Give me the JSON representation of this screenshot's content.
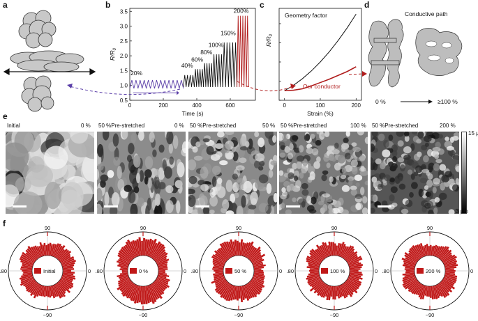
{
  "panels": {
    "a": "a",
    "b": "b",
    "c": "c",
    "d": "d",
    "e": "e",
    "f": "f"
  },
  "chart_data": [
    {
      "type": "line",
      "panel": "b",
      "ylabel": "R/R0",
      "xlabel": "Time (s)",
      "xlim": [
        0,
        750
      ],
      "ylim": [
        0.5,
        3.6
      ],
      "xticks": [
        0,
        200,
        400,
        600
      ],
      "yticks": [
        0.5,
        1.0,
        1.5,
        2.0,
        2.5,
        3.0,
        3.5
      ],
      "ytick_labels": [
        "0.5",
        "1.0",
        "1.5",
        "2.0",
        "2.5",
        "3.0",
        "3.5"
      ],
      "series": [
        {
          "name": "20%",
          "color": "#5b3fa8",
          "t_start": 0,
          "t_end": 320,
          "cycles": 13,
          "min": 0.9,
          "max": 1.18
        },
        {
          "name": "40%",
          "color": "#111111",
          "t_start": 320,
          "t_end": 385,
          "cycles": 4,
          "min": 0.95,
          "max": 1.35
        },
        {
          "name": "60%",
          "color": "#111111",
          "t_start": 385,
          "t_end": 440,
          "cycles": 4,
          "min": 0.95,
          "max": 1.55
        },
        {
          "name": "80%",
          "color": "#111111",
          "t_start": 440,
          "t_end": 495,
          "cycles": 4,
          "min": 0.95,
          "max": 1.75
        },
        {
          "name": "100%",
          "color": "#111111",
          "t_start": 495,
          "t_end": 555,
          "cycles": 4,
          "min": 0.95,
          "max": 2.05
        },
        {
          "name": "150%",
          "color": "#111111",
          "t_start": 555,
          "t_end": 640,
          "cycles": 5,
          "min": 0.95,
          "max": 2.45
        },
        {
          "name": "200%",
          "color": "#b01c1c",
          "t_start": 640,
          "t_end": 710,
          "cycles": 5,
          "min": 0.95,
          "max": 3.35
        }
      ],
      "annotations": [
        "20%",
        "40%",
        "60%",
        "80%",
        "100%",
        "150%",
        "200%"
      ]
    },
    {
      "type": "line",
      "panel": "c",
      "ylabel": "R/R0",
      "xlabel": "Strain (%)",
      "xlim": [
        -15,
        215
      ],
      "ylim": [
        0,
        9.6
      ],
      "xticks": [
        0,
        100,
        200
      ],
      "yticks": [
        0,
        2,
        4,
        6,
        8
      ],
      "series": [
        {
          "name": "Geometry factor",
          "color": "#111111",
          "x": [
            0,
            25,
            50,
            75,
            100,
            125,
            150,
            175,
            200
          ],
          "y": [
            1,
            1.56,
            2.25,
            3.06,
            4.0,
            5.06,
            6.25,
            7.56,
            9.0
          ]
        },
        {
          "name": "Our conductor",
          "color": "#b01c1c",
          "x": [
            0,
            25,
            50,
            75,
            100,
            125,
            150,
            175,
            200
          ],
          "y": [
            1,
            1.05,
            1.2,
            1.5,
            1.85,
            2.2,
            2.6,
            3.0,
            3.5
          ]
        }
      ]
    }
  ],
  "panel_a": {
    "description_only": true
  },
  "panel_d": {
    "title": "Conductive path",
    "strain_from": "0 %",
    "strain_to": "≥100 %"
  },
  "panel_e": {
    "colorbar": {
      "max": "15 μm",
      "min": "3 μm"
    },
    "images": [
      {
        "left": "Initial",
        "right": "0 %"
      },
      {
        "left": "50 %Pre-stretched",
        "right": "0 %"
      },
      {
        "left": "50 %Pre-stretched",
        "right": "50 %"
      },
      {
        "left": "50 %Pre-stretched",
        "right": "100 %"
      },
      {
        "left": "50 %Pre-stretched",
        "right": "200 %"
      }
    ]
  },
  "panel_f": {
    "angle_labels": {
      "top": "90",
      "left": "180",
      "right": "0",
      "bottom": "−90"
    },
    "charts": [
      {
        "legend": "Initial",
        "spread": [
          1.0,
          1.0
        ]
      },
      {
        "legend": "0 %",
        "spread": [
          0.55,
          1.75
        ]
      },
      {
        "legend": "50 %",
        "spread": [
          0.75,
          1.4
        ]
      },
      {
        "legend": "100 %",
        "spread": [
          0.95,
          1.1
        ]
      },
      {
        "legend": "200 %",
        "spread": [
          1.0,
          1.0
        ]
      }
    ],
    "bar_color": "#c01818"
  }
}
